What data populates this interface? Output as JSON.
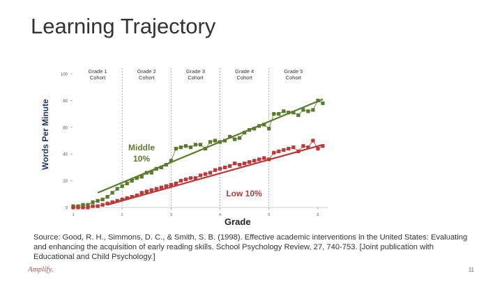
{
  "slide": {
    "title": "Learning Trajectory",
    "source": "Source: Good, R. H., Simmons, D. C., & Smith, S. B. (1998). Effective academic interventions in the United States: Evaluating and enhancing the acquisition of early reading skills. School Psychology Review, 27, 740-753. [Joint publication with Educational and Child Psychology.]",
    "logo": "Amplify.",
    "page_number": "11"
  },
  "chart_data": {
    "type": "line",
    "xlabel": "Grade",
    "ylabel": "Words Per Minute",
    "ylim": [
      0,
      100
    ],
    "xlim": [
      1,
      6.2
    ],
    "yticks": [
      0,
      20,
      40,
      60,
      80,
      100
    ],
    "xticks": [
      1,
      2,
      3,
      4,
      5,
      6
    ],
    "xtick_labels": [
      "1",
      "2",
      "3",
      "4",
      "5",
      "6"
    ],
    "cohorts": [
      {
        "line1": "Grade 1",
        "line2": "Cohort",
        "x": 1.5
      },
      {
        "line1": "Grade 2",
        "line2": "Cohort",
        "x": 2.5
      },
      {
        "line1": "Grade 3",
        "line2": "Cohort",
        "x": 3.5
      },
      {
        "line1": "Grade 4",
        "line2": "Cohort",
        "x": 4.5
      },
      {
        "line1": "Grade 5",
        "line2": "Cohort",
        "x": 5.5
      }
    ],
    "cohort_dividers": [
      2,
      3,
      4,
      5
    ],
    "series": [
      {
        "name": "Middle 10%",
        "label_line1": "Middle",
        "label_line2": "10%",
        "color": "#5b7a2e",
        "trend": [
          [
            1.5,
            11
          ],
          [
            6.1,
            81
          ]
        ],
        "x": [
          1.0,
          1.1,
          1.2,
          1.3,
          1.4,
          1.5,
          1.6,
          1.7,
          1.8,
          1.9,
          2.0,
          2.1,
          2.2,
          2.3,
          2.4,
          2.5,
          2.6,
          2.7,
          2.8,
          2.9,
          3.0,
          3.1,
          3.2,
          3.3,
          3.4,
          3.5,
          3.6,
          3.7,
          3.8,
          3.9,
          4.0,
          4.1,
          4.2,
          4.3,
          4.4,
          4.5,
          4.6,
          4.7,
          4.8,
          4.9,
          5.0,
          5.1,
          5.2,
          5.3,
          5.4,
          5.5,
          5.6,
          5.7,
          5.8,
          5.9,
          6.0,
          6.1
        ],
        "values": [
          1,
          1,
          2,
          2,
          4,
          5,
          6,
          8,
          11,
          14,
          16,
          18,
          20,
          22,
          23,
          26,
          26,
          29,
          30,
          32,
          35,
          44,
          45,
          46,
          45,
          47,
          47,
          44,
          49,
          50,
          49,
          50,
          53,
          51,
          52,
          56,
          58,
          59,
          61,
          62,
          59,
          70,
          70,
          72,
          71,
          71,
          69,
          73,
          72,
          73,
          80,
          78
        ]
      },
      {
        "name": "Low 10%",
        "label_line1": "Low 10%",
        "label_line2": "",
        "color": "#b83a3a",
        "trend": [
          [
            1.7,
            2
          ],
          [
            6.1,
            47
          ]
        ],
        "x": [
          1.0,
          1.1,
          1.2,
          1.3,
          1.4,
          1.5,
          1.6,
          1.7,
          1.8,
          1.9,
          2.0,
          2.1,
          2.2,
          2.3,
          2.4,
          2.5,
          2.6,
          2.7,
          2.8,
          2.9,
          3.0,
          3.1,
          3.2,
          3.3,
          3.4,
          3.5,
          3.6,
          3.7,
          3.8,
          3.9,
          4.0,
          4.1,
          4.2,
          4.3,
          4.4,
          4.5,
          4.6,
          4.7,
          4.8,
          4.9,
          5.0,
          5.1,
          5.2,
          5.3,
          5.4,
          5.5,
          5.6,
          5.7,
          5.8,
          5.9,
          6.0,
          6.1
        ],
        "values": [
          0,
          0,
          0,
          0,
          1,
          1,
          2,
          3,
          4,
          5,
          6,
          7,
          8,
          9,
          11,
          12,
          13,
          14,
          15,
          16,
          17,
          18,
          20,
          21,
          22,
          22,
          24,
          25,
          26,
          28,
          29,
          30,
          31,
          33,
          32,
          33,
          34,
          35,
          36,
          37,
          36,
          41,
          42,
          43,
          44,
          45,
          42,
          46,
          45,
          50,
          44,
          46
        ]
      }
    ]
  }
}
